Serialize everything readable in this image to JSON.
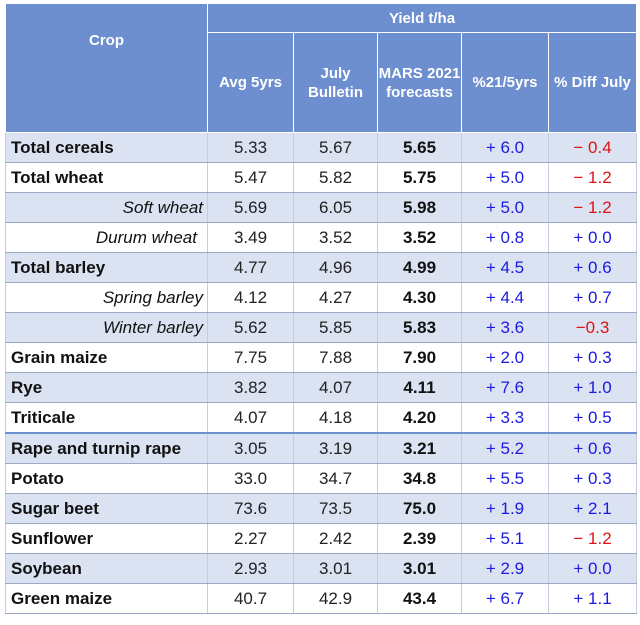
{
  "header": {
    "crop": "Crop",
    "group": "Yield t/ha",
    "columns": {
      "avg5": "Avg 5yrs",
      "july": "July Bulletin",
      "mars": "MARS 2021 forecasts",
      "pct": "%21/5yrs",
      "diff": "% Diff July"
    }
  },
  "rows": [
    {
      "crop": "Total cereals",
      "avg5": "5.33",
      "july": "5.67",
      "mars": "5.65",
      "pct": "+ 6.0",
      "diff": "− 0.4"
    },
    {
      "crop": "Total wheat",
      "avg5": "5.47",
      "july": "5.82",
      "mars": "5.75",
      "pct": "+ 5.0",
      "diff": "− 1.2"
    },
    {
      "crop": "Soft wheat",
      "avg5": "5.69",
      "july": "6.05",
      "mars": "5.98",
      "pct": "+ 5.0",
      "diff": "− 1.2"
    },
    {
      "crop": "Durum wheat",
      "avg5": "3.49",
      "july": "3.52",
      "mars": "3.52",
      "pct": "+ 0.8",
      "diff": "+ 0.0"
    },
    {
      "crop": "Total barley",
      "avg5": "4.77",
      "july": "4.96",
      "mars": "4.99",
      "pct": "+ 4.5",
      "diff": "+ 0.6"
    },
    {
      "crop": "Spring barley",
      "avg5": "4.12",
      "july": "4.27",
      "mars": "4.30",
      "pct": "+ 4.4",
      "diff": "+ 0.7"
    },
    {
      "crop": "Winter barley",
      "avg5": "5.62",
      "july": "5.85",
      "mars": "5.83",
      "pct": "+ 3.6",
      "diff": "−0.3"
    },
    {
      "crop": "Grain maize",
      "avg5": "7.75",
      "july": "7.88",
      "mars": "7.90",
      "pct": "+ 2.0",
      "diff": "+ 0.3"
    },
    {
      "crop": "Rye",
      "avg5": "3.82",
      "july": "4.07",
      "mars": "4.11",
      "pct": "+ 7.6",
      "diff": "+ 1.0"
    },
    {
      "crop": "Triticale",
      "avg5": "4.07",
      "july": "4.18",
      "mars": "4.20",
      "pct": "+ 3.3",
      "diff": "+ 0.5"
    },
    {
      "crop": "Rape and turnip rape",
      "avg5": "3.05",
      "july": "3.19",
      "mars": "3.21",
      "pct": "+ 5.2",
      "diff": "+ 0.6"
    },
    {
      "crop": "Potato",
      "avg5": "33.0",
      "july": "34.7",
      "mars": "34.8",
      "pct": "+ 5.5",
      "diff": "+ 0.3"
    },
    {
      "crop": "Sugar beet",
      "avg5": "73.6",
      "july": "73.5",
      "mars": "75.0",
      "pct": "+ 1.9",
      "diff": "+ 2.1"
    },
    {
      "crop": "Sunflower",
      "avg5": "2.27",
      "july": "2.42",
      "mars": "2.39",
      "pct": "+ 5.1",
      "diff": "− 1.2"
    },
    {
      "crop": "Soybean",
      "avg5": "2.93",
      "july": "3.01",
      "mars": "3.01",
      "pct": "+ 2.9",
      "diff": "+ 0.0"
    },
    {
      "crop": "Green maize",
      "avg5": "40.7",
      "july": "42.9",
      "mars": "43.4",
      "pct": "+ 6.7",
      "diff": "+ 1.1"
    }
  ],
  "colors": {
    "header_bg": "#6d8fcf",
    "band": "#dbe2f1",
    "positive": "#1a1ae0",
    "negative": "#e01414"
  }
}
